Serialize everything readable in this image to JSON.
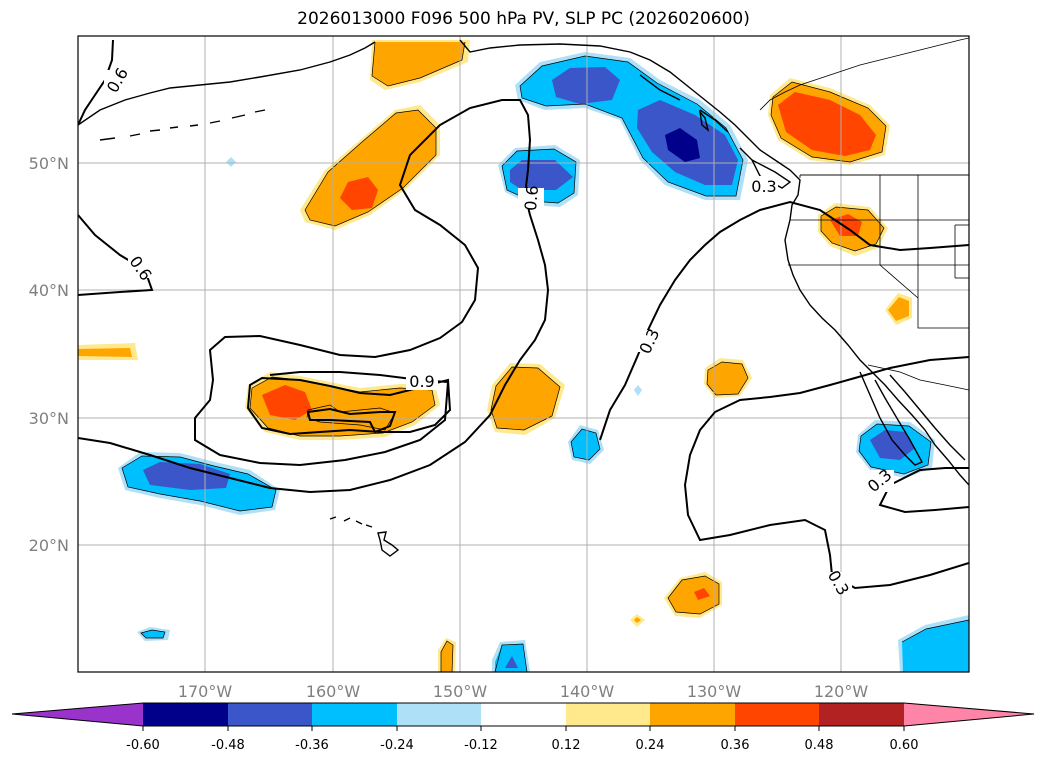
{
  "title": "2026013000 F096 500 hPa PV, SLP PC (2026020600)",
  "map": {
    "lat_labels": [
      "50°N",
      "40°N",
      "30°N",
      "20°N"
    ],
    "lon_labels": [
      "170°W",
      "160°W",
      "150°W",
      "140°W",
      "130°W",
      "120°W"
    ],
    "contour_labels": [
      "0.6",
      "0.6",
      "0.6",
      "0.9",
      "0.3",
      "0.3",
      "0.3",
      "0.3"
    ]
  },
  "colorbar": {
    "ticks": [
      "-0.60",
      "-0.48",
      "-0.36",
      "-0.24",
      "-0.12",
      "0.12",
      "0.24",
      "0.36",
      "0.48",
      "0.60"
    ],
    "colors": [
      "#9933cc",
      "#00008b",
      "#3a56c9",
      "#00bfff",
      "#aee0f7",
      "#ffffff",
      "#ffe98c",
      "#ffa500",
      "#ff4500",
      "#b22222",
      "#ff85a8"
    ]
  },
  "palette": {
    "orange": "#ffa500",
    "orange_red": "#ff4500",
    "pale_yellow": "#ffe98c",
    "sky_blue": "#00bfff",
    "light_blue": "#aee0f7",
    "royal_blue": "#3a56c9",
    "navy": "#00008b"
  }
}
